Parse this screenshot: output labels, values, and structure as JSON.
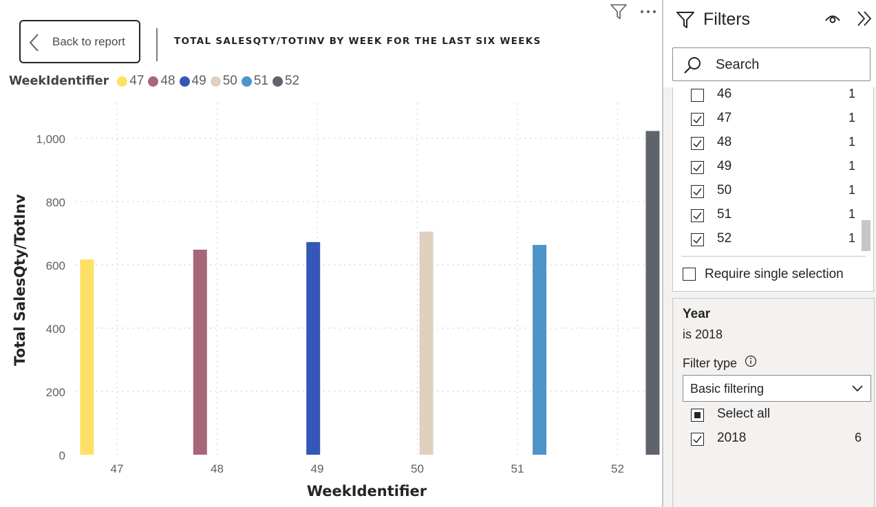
{
  "report": {
    "back_button_label": "Back to report",
    "title": "TOTAL SALESQTY/TOTINV BY WEEK FOR THE LAST SIX WEEKS"
  },
  "chart_data": {
    "type": "bar",
    "title": "TOTAL SALESQTY/TOTINV BY WEEK FOR THE LAST SIX WEEKS",
    "xlabel": "WeekIdentifier",
    "ylabel": "Total SalesQty/TotInv",
    "categories": [
      "47",
      "48",
      "49",
      "50",
      "51",
      "52"
    ],
    "legend_title": "WeekIdentifier",
    "legend_position": "top-left",
    "grid": true,
    "ylim": [
      0,
      1100
    ],
    "yticks": [
      0,
      200,
      400,
      600,
      800,
      1000
    ],
    "ytick_labels": [
      "0",
      "200",
      "400",
      "600",
      "800",
      "1,000"
    ],
    "series": [
      {
        "name": "47",
        "color": "#FFE066",
        "x": 46.7,
        "value": 617
      },
      {
        "name": "48",
        "color": "#A66878",
        "x": 47.83,
        "value": 648
      },
      {
        "name": "49",
        "color": "#3557B8",
        "x": 48.96,
        "value": 672
      },
      {
        "name": "50",
        "color": "#DFD0BF",
        "x": 50.09,
        "value": 705
      },
      {
        "name": "51",
        "color": "#4D94C8",
        "x": 51.22,
        "value": 663
      },
      {
        "name": "52",
        "color": "#5F636B",
        "x": 52.35,
        "value": 1023
      }
    ]
  },
  "filters": {
    "title": "Filters",
    "search_placeholder": "Search",
    "week_items": [
      {
        "label": "46",
        "count": "1",
        "checked": false
      },
      {
        "label": "47",
        "count": "1",
        "checked": true
      },
      {
        "label": "48",
        "count": "1",
        "checked": true
      },
      {
        "label": "49",
        "count": "1",
        "checked": true
      },
      {
        "label": "50",
        "count": "1",
        "checked": true
      },
      {
        "label": "51",
        "count": "1",
        "checked": true
      },
      {
        "label": "52",
        "count": "1",
        "checked": true
      }
    ],
    "require_single_label": "Require single selection",
    "year_card": {
      "title": "Year",
      "summary": "is 2018",
      "filter_type_label": "Filter type",
      "filter_type_value": "Basic filtering",
      "select_all_label": "Select all",
      "item_label": "2018",
      "item_count": "6"
    }
  }
}
